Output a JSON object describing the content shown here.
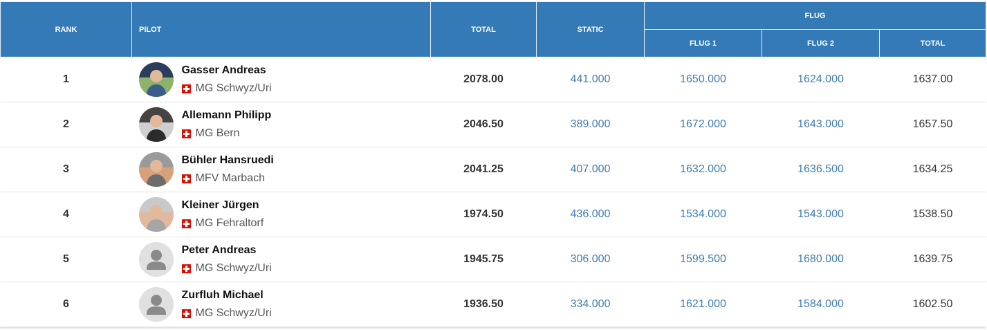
{
  "header": {
    "rank": "RANK",
    "pilot": "PILOT",
    "total": "TOTAL",
    "static": "STATIC",
    "flug_group": "FLUG",
    "flug1": "FLUG 1",
    "flug2": "FLUG 2",
    "flug_total": "TOTAL"
  },
  "colors": {
    "header_bg": "#337ab7",
    "link": "#3e7cb1",
    "flag": "#e00b00"
  },
  "rows": [
    {
      "rank": "1",
      "name": "Gasser Andreas",
      "club": "MG Schwyz/Uri",
      "avatar": "photo",
      "total": "2078.00",
      "static": "441.000",
      "flug1": "1650.000",
      "flug2": "1624.000",
      "flug_total": "1637.00"
    },
    {
      "rank": "2",
      "name": "Allemann Philipp",
      "club": "MG Bern",
      "avatar": "photo",
      "total": "2046.50",
      "static": "389.000",
      "flug1": "1672.000",
      "flug2": "1643.000",
      "flug_total": "1657.50"
    },
    {
      "rank": "3",
      "name": "Bühler Hansruedi",
      "club": "MFV Marbach",
      "avatar": "photo",
      "total": "2041.25",
      "static": "407.000",
      "flug1": "1632.000",
      "flug2": "1636.500",
      "flug_total": "1634.25"
    },
    {
      "rank": "4",
      "name": "Kleiner Jürgen",
      "club": "MG Fehraltorf",
      "avatar": "photo",
      "total": "1974.50",
      "static": "436.000",
      "flug1": "1534.000",
      "flug2": "1543.000",
      "flug_total": "1538.50"
    },
    {
      "rank": "5",
      "name": "Peter Andreas",
      "club": "MG Schwyz/Uri",
      "avatar": "placeholder",
      "total": "1945.75",
      "static": "306.000",
      "flug1": "1599.500",
      "flug2": "1680.000",
      "flug_total": "1639.75"
    },
    {
      "rank": "6",
      "name": "Zurfluh Michael",
      "club": "MG Schwyz/Uri",
      "avatar": "placeholder",
      "total": "1936.50",
      "static": "334.000",
      "flug1": "1621.000",
      "flug2": "1584.000",
      "flug_total": "1602.50"
    }
  ]
}
